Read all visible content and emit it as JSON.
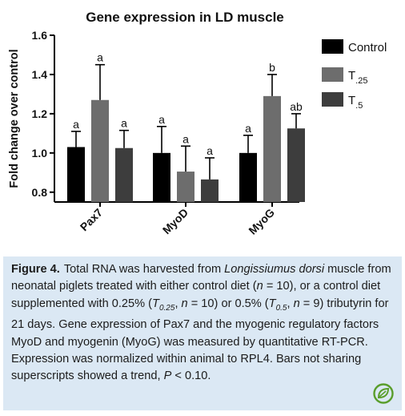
{
  "chart_data": {
    "type": "bar",
    "title": "Gene expression in LD muscle",
    "ylabel": "Fold change over control",
    "xlabel": "",
    "ylim": [
      0.75,
      1.6
    ],
    "yticks": [
      "0.8",
      "1.0",
      "1.2",
      "1.4",
      "1.6"
    ],
    "categories": [
      "Pax7",
      "MyoD",
      "MyoG"
    ],
    "legend_position": "right",
    "grid": false,
    "series": [
      {
        "name": "Control",
        "name_sub": "",
        "color": "#000000",
        "values": [
          1.03,
          1.0,
          1.0
        ],
        "errors": [
          0.08,
          0.135,
          0.09
        ],
        "labels": [
          "a",
          "a",
          "a"
        ]
      },
      {
        "name": "T",
        "name_sub": ".25",
        "color": "#6d6d6d",
        "values": [
          1.27,
          0.905,
          1.29
        ],
        "errors": [
          0.18,
          0.13,
          0.11
        ],
        "labels": [
          "a",
          "a",
          "b"
        ]
      },
      {
        "name": "T",
        "name_sub": ".5",
        "color": "#3d3d3d",
        "values": [
          1.025,
          0.865,
          1.125
        ],
        "errors": [
          0.09,
          0.11,
          0.075
        ],
        "labels": [
          "a",
          "a",
          "ab"
        ]
      }
    ]
  },
  "caption": {
    "label": "Figure 4.",
    "parts": [
      {
        "t": "Total RNA was harvested from "
      },
      {
        "t": "Longissiumus dorsi",
        "i": true
      },
      {
        "t": " muscle from neonatal piglets treated with either control diet ("
      },
      {
        "t": "n",
        "i": true
      },
      {
        "t": " = 10), or a control diet supplemented with 0.25% ("
      },
      {
        "t": "T",
        "i": true
      },
      {
        "t": "0.25",
        "sub": true
      },
      {
        "t": ", "
      },
      {
        "t": "n",
        "i": true
      },
      {
        "t": " = 10) or 0.5% ("
      },
      {
        "t": "T",
        "i": true
      },
      {
        "t": "0.5",
        "sub": true
      },
      {
        "t": ", "
      },
      {
        "t": "n",
        "i": true
      },
      {
        "t": " = 9) tributyrin for 21 days. Gene expression of Pax7 and the myogenic regulatory factors MyoD and myogenin (MyoG) was measured by quantitative RT-PCR. Expression was normalized within animal to RPL4. Bars not sharing superscripts showed a trend, "
      },
      {
        "t": "P",
        "i": true
      },
      {
        "t": " < 0.10."
      }
    ]
  },
  "logo": {
    "icon": "journal-leaf-logo-icon",
    "color": "#5a9e2c"
  }
}
